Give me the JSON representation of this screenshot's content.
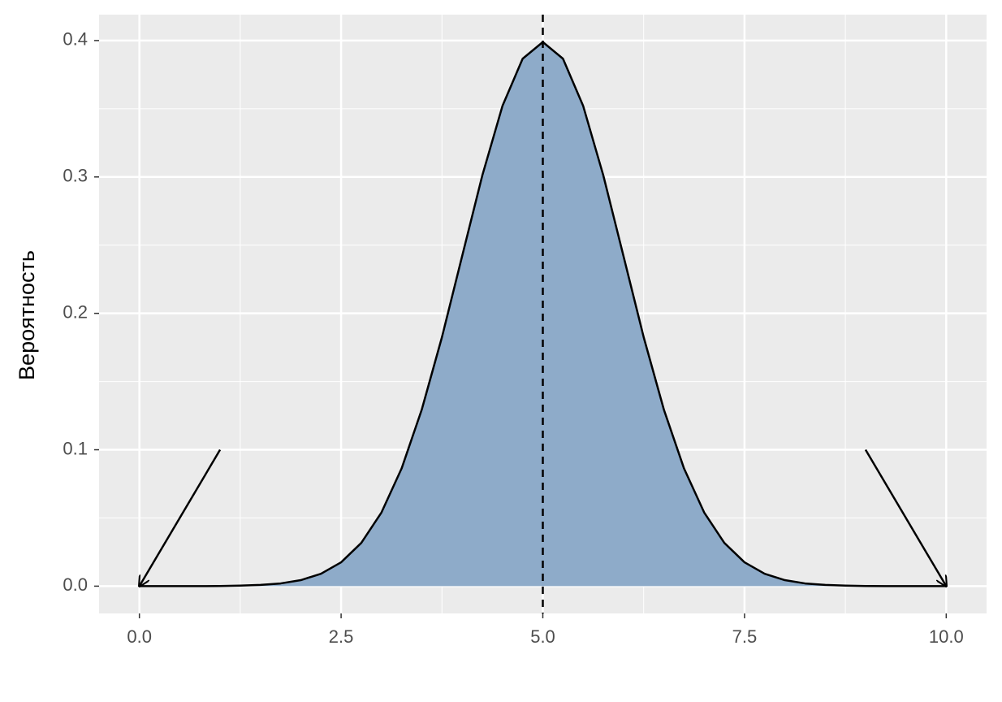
{
  "chart_data": {
    "type": "area",
    "y_label": "Вероятность",
    "x": [
      0,
      0.25,
      0.5,
      0.75,
      1,
      1.25,
      1.5,
      1.75,
      2,
      2.25,
      2.5,
      2.75,
      3,
      3.25,
      3.5,
      3.75,
      4,
      4.25,
      4.5,
      4.75,
      5,
      5.25,
      5.5,
      5.75,
      6,
      6.25,
      6.5,
      6.75,
      7,
      7.25,
      7.5,
      7.75,
      8,
      8.25,
      8.5,
      8.75,
      9,
      9.25,
      9.5,
      9.75,
      10
    ],
    "values": [
      0,
      0,
      0,
      0,
      0.0001,
      0.0004,
      0.0009,
      0.002,
      0.0044,
      0.0091,
      0.0175,
      0.0317,
      0.054,
      0.0863,
      0.1295,
      0.1826,
      0.242,
      0.3011,
      0.3521,
      0.3867,
      0.3989,
      0.3867,
      0.3521,
      0.3011,
      0.242,
      0.1826,
      0.1295,
      0.0863,
      0.054,
      0.0317,
      0.0175,
      0.0091,
      0.0044,
      0.002,
      0.0009,
      0.0004,
      0.0001,
      0,
      0,
      0,
      0
    ],
    "color": "#8eabc9",
    "xlim": [
      -0.5,
      10.5
    ],
    "ylim": [
      -0.02,
      0.419
    ],
    "xticks": [
      {
        "value": 0,
        "label": "0.0"
      },
      {
        "value": 2.5,
        "label": "2.5"
      },
      {
        "value": 5,
        "label": "5.0"
      },
      {
        "value": 7.5,
        "label": "7.5"
      },
      {
        "value": 10,
        "label": "10.0"
      }
    ],
    "yticks": [
      {
        "value": 0,
        "label": "0.0"
      },
      {
        "value": 0.1,
        "label": "0.1"
      },
      {
        "value": 0.2,
        "label": "0.2"
      },
      {
        "value": 0.3,
        "label": "0.3"
      },
      {
        "value": 0.4,
        "label": "0.4"
      }
    ],
    "grid": true,
    "vline": 5,
    "arrows": [
      {
        "x": 1,
        "y": 0.1,
        "xend": 0,
        "yend": 0
      },
      {
        "x": 9,
        "y": 0.1,
        "xend": 10,
        "yend": 0
      }
    ]
  }
}
